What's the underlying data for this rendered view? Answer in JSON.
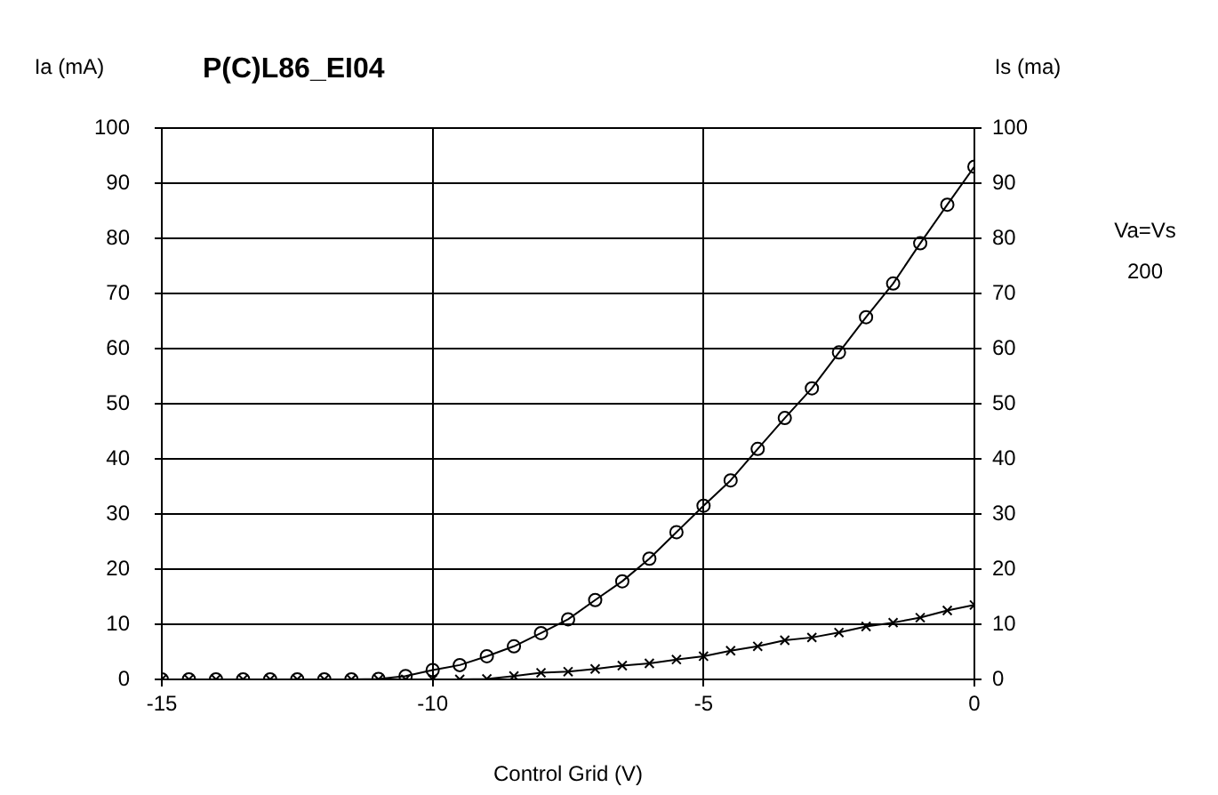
{
  "chart_data": {
    "type": "line",
    "title": "P(C)L86_EI04",
    "xlabel": "Control Grid (V)",
    "ylabel": "Ia (mA)",
    "y2label": "Is (ma)",
    "annotations": [
      "Va=Vs",
      "200"
    ],
    "x": [
      -15,
      -14.5,
      -14,
      -13.5,
      -13,
      -12.5,
      -12,
      -11.5,
      -11,
      -10.5,
      -10,
      -9.5,
      -9,
      -8.5,
      -8,
      -7.5,
      -7,
      -6.5,
      -6,
      -5.5,
      -5,
      -4.5,
      -4,
      -3.5,
      -3,
      -2.5,
      -2,
      -1.5,
      -1,
      -0.5,
      0
    ],
    "series": [
      {
        "color": "#000000",
        "marker": "circle",
        "values": [
          0,
          0,
          0,
          0,
          0,
          0,
          0,
          0,
          0.1,
          0.6,
          1.7,
          2.6,
          4.2,
          6.0,
          8.4,
          10.9,
          14.4,
          17.8,
          21.9,
          26.7,
          31.5,
          36.1,
          41.8,
          47.4,
          52.8,
          59.3,
          65.7,
          71.8,
          79.1,
          86.1,
          93
        ]
      },
      {
        "color": "#000000",
        "marker": "cross",
        "axis": "y2",
        "values": [
          0,
          0,
          0,
          0,
          0,
          0,
          0,
          0,
          0,
          0,
          0,
          0,
          0.1,
          0.6,
          1.2,
          1.4,
          1.9,
          2.5,
          2.9,
          3.6,
          4.2,
          5.2,
          6.0,
          7.1,
          7.6,
          8.5,
          9.6,
          10.3,
          11.2,
          12.5,
          13.5
        ]
      }
    ],
    "xlim": [
      -15,
      0
    ],
    "xticks": [
      -15,
      -10,
      -5,
      0
    ],
    "ylim": [
      0,
      100
    ],
    "yticks": [
      0,
      10,
      20,
      30,
      40,
      50,
      60,
      70,
      80,
      90,
      100
    ],
    "y2lim": [
      0,
      100
    ],
    "y2ticks": [
      0,
      10,
      20,
      30,
      40,
      50,
      60,
      70,
      80,
      90,
      100
    ],
    "grid": true,
    "legend": false,
    "line_style": "solid"
  }
}
